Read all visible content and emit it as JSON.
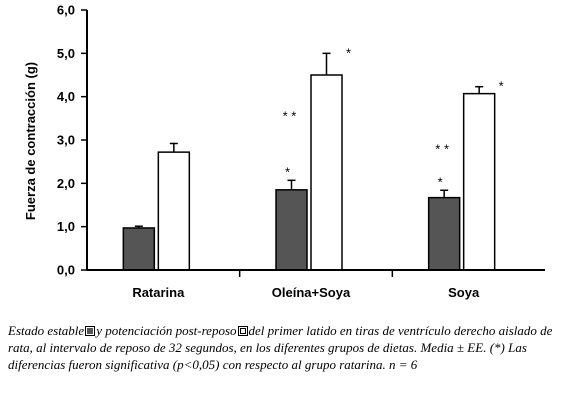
{
  "chart_data": {
    "type": "bar",
    "categories": [
      "Ratarina",
      "Oleína+Soya",
      "Soya"
    ],
    "series": [
      {
        "values": [
          0.97,
          1.85,
          1.67
        ],
        "errors": [
          0.04,
          0.22,
          0.17
        ],
        "color": "#555555"
      },
      {
        "values": [
          2.72,
          4.5,
          4.07
        ],
        "errors": [
          0.2,
          0.5,
          0.16
        ],
        "color": "#ffffff"
      }
    ],
    "annotations": [
      {
        "category": 1,
        "series": 0,
        "text": "*"
      },
      {
        "category": 1,
        "series": 1,
        "text": "*"
      },
      {
        "category": 1,
        "series": 1,
        "text": "**",
        "side": "left"
      },
      {
        "category": 2,
        "series": 0,
        "text": "*"
      },
      {
        "category": 2,
        "series": 1,
        "text": "*"
      },
      {
        "category": 2,
        "series": 1,
        "text": "**",
        "side": "left"
      }
    ],
    "ylabel": "Fuerza de contracción (g)",
    "yticks": [
      "0,0",
      "1,0",
      "2,0",
      "3,0",
      "4,0",
      "5,0",
      "6,0"
    ],
    "ylim": [
      0,
      6
    ],
    "grid": false,
    "caption": {
      "part1": "Estado estable",
      "part2": "y potenciación post-reposo",
      "part3": "del primer latido en tiras de ventrículo derecho aislado de rata, al intervalo de reposo de 32 segundos, en los diferentes grupos de dietas. Media ± EE. (*) Las diferencias fueron significativa (p<0,05) con respecto al grupo ratarina. n = 6"
    }
  }
}
